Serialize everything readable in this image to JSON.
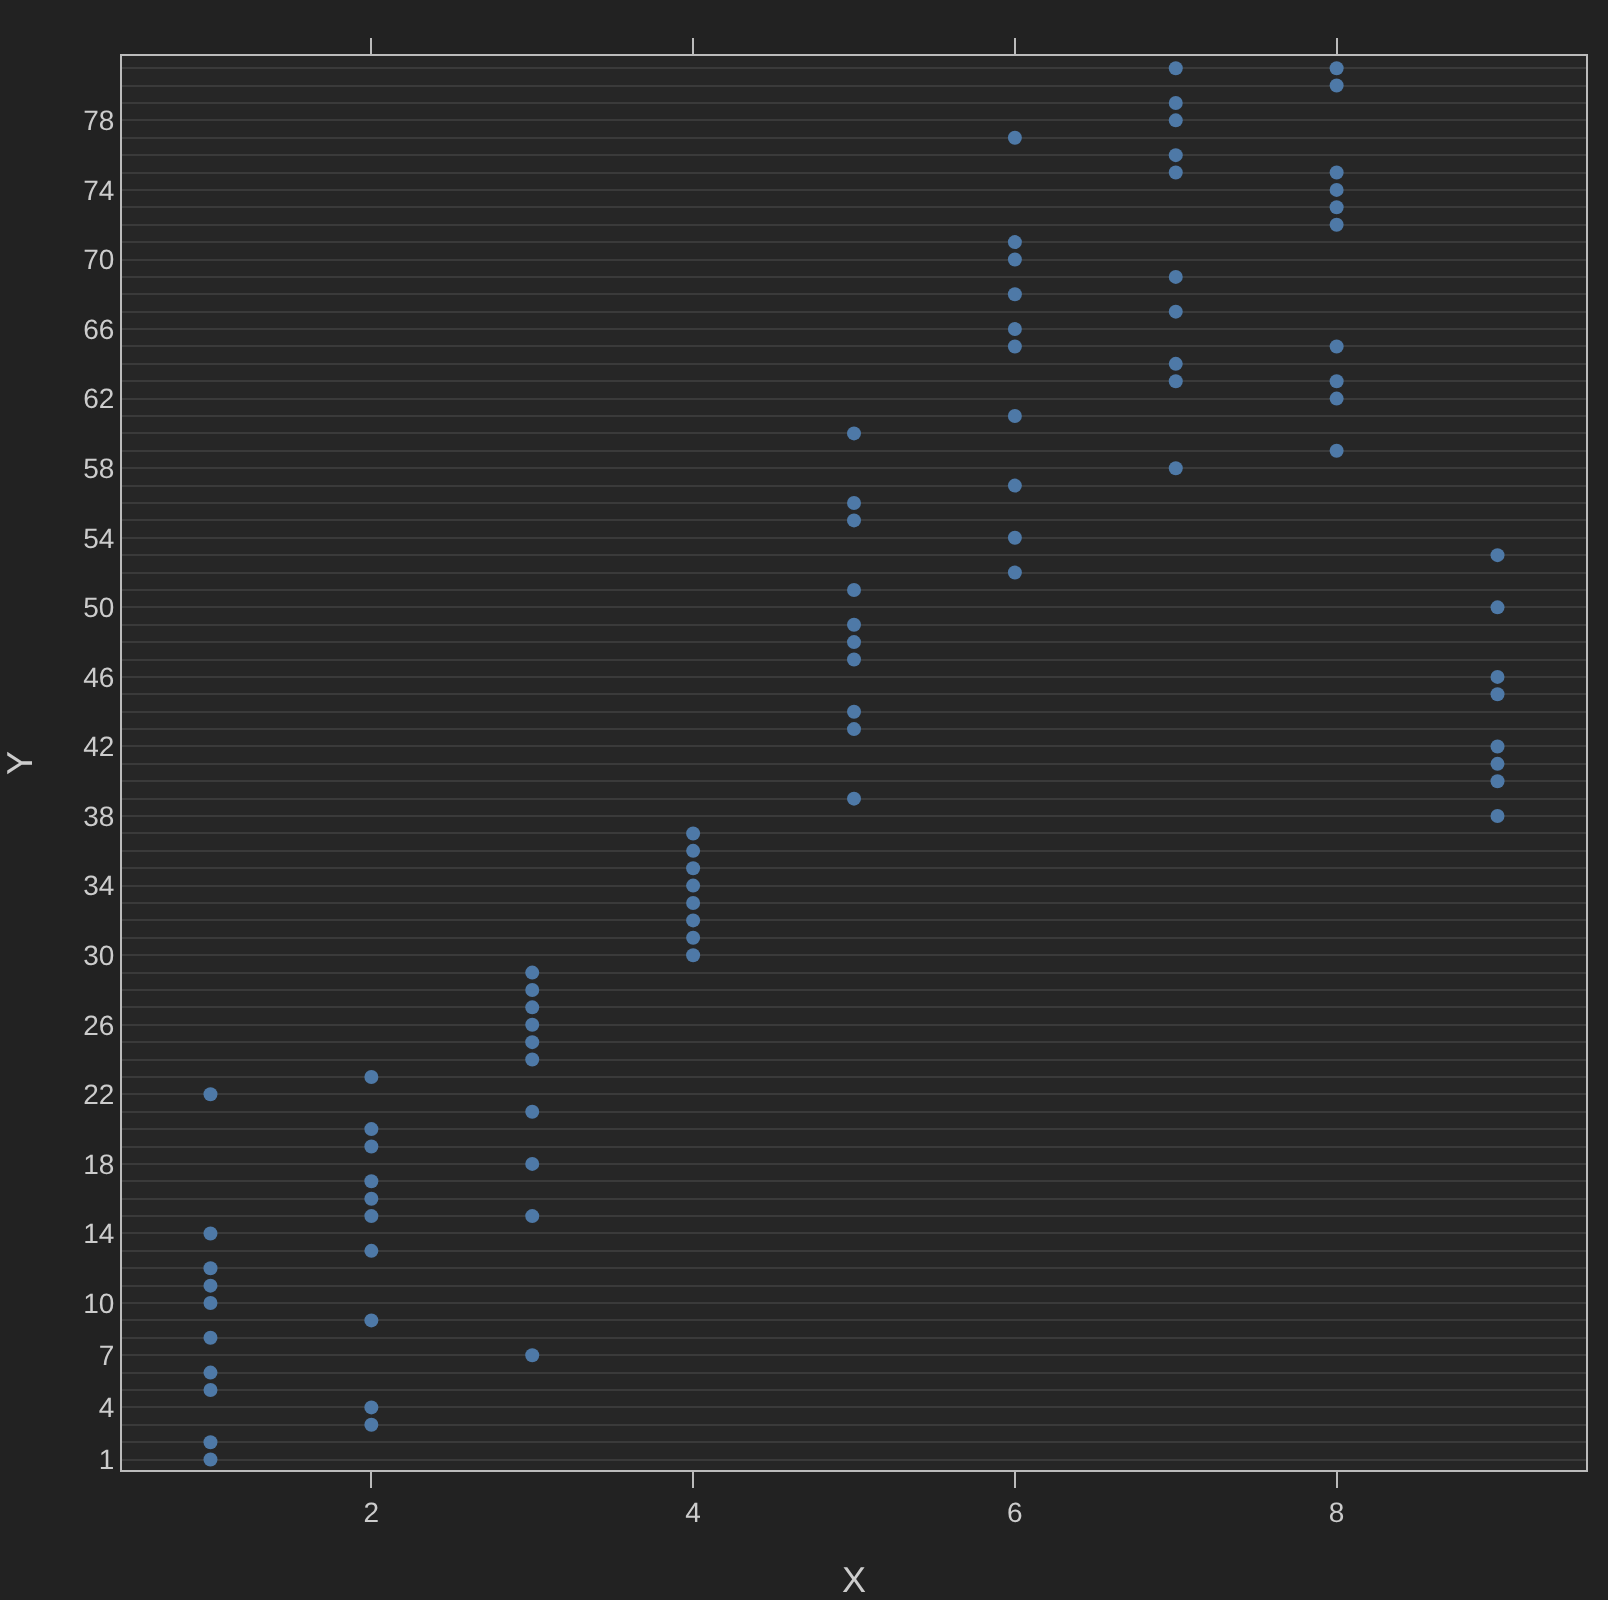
{
  "chart_data": {
    "type": "scatter",
    "xlabel": "X",
    "ylabel": "Y",
    "color": "#4e79a7",
    "marker": "circle",
    "grid": "y",
    "x": [
      1,
      1,
      1,
      1,
      1,
      1,
      1,
      1,
      1,
      1,
      2,
      2,
      2,
      2,
      2,
      2,
      2,
      2,
      2,
      2,
      3,
      3,
      3,
      3,
      3,
      3,
      3,
      3,
      3,
      3,
      4,
      4,
      4,
      4,
      4,
      4,
      4,
      4,
      5,
      5,
      5,
      5,
      5,
      5,
      5,
      5,
      5,
      5,
      6,
      6,
      6,
      6,
      6,
      6,
      6,
      6,
      6,
      6,
      7,
      7,
      7,
      7,
      7,
      7,
      7,
      7,
      7,
      7,
      8,
      8,
      8,
      8,
      8,
      8,
      8,
      8,
      8,
      8,
      9,
      9,
      9,
      9,
      9,
      9,
      9,
      9
    ],
    "values": [
      22,
      14,
      12,
      11,
      10,
      8,
      6,
      5,
      2,
      1,
      23,
      20,
      19,
      17,
      16,
      15,
      13,
      9,
      4,
      3,
      29,
      28,
      27,
      26,
      25,
      24,
      21,
      18,
      15,
      7,
      37,
      36,
      35,
      34,
      33,
      32,
      31,
      30,
      60,
      56,
      55,
      51,
      49,
      48,
      47,
      44,
      43,
      39,
      77,
      71,
      70,
      68,
      66,
      65,
      61,
      57,
      54,
      52,
      81,
      79,
      78,
      76,
      75,
      69,
      67,
      64,
      63,
      58,
      81,
      80,
      75,
      74,
      73,
      72,
      65,
      63,
      62,
      59,
      53,
      50,
      46,
      45,
      42,
      41,
      40,
      38
    ],
    "xlim": [
      0.45,
      9.55
    ],
    "xticks": [
      2,
      4,
      6,
      8
    ],
    "ylim": [
      0.4,
      81.7
    ],
    "yticks": [
      1,
      {
        "value": 2,
        "label": null
      },
      {
        "value": 3,
        "label": null
      },
      4,
      {
        "value": 5,
        "label": null
      },
      {
        "value": 6,
        "label": null
      },
      7,
      {
        "value": 8,
        "label": null
      },
      {
        "value": 9,
        "label": null
      },
      10,
      {
        "value": 11,
        "label": null
      },
      {
        "value": 12,
        "label": null
      },
      {
        "value": 13,
        "label": null
      },
      14,
      {
        "value": 15,
        "label": null
      },
      {
        "value": 16,
        "label": null
      },
      {
        "value": 17,
        "label": null
      },
      18,
      {
        "value": 19,
        "label": null
      },
      {
        "value": 20,
        "label": null
      },
      {
        "value": 21,
        "label": null
      },
      22,
      {
        "value": 23,
        "label": null
      },
      {
        "value": 24,
        "label": null
      },
      {
        "value": 25,
        "label": null
      },
      26,
      {
        "value": 27,
        "label": null
      },
      {
        "value": 28,
        "label": null
      },
      {
        "value": 29,
        "label": null
      },
      30,
      {
        "value": 31,
        "label": null
      },
      {
        "value": 32,
        "label": null
      },
      {
        "value": 33,
        "label": null
      },
      34,
      {
        "value": 35,
        "label": null
      },
      {
        "value": 36,
        "label": null
      },
      {
        "value": 37,
        "label": null
      },
      38,
      {
        "value": 39,
        "label": null
      },
      {
        "value": 40,
        "label": null
      },
      {
        "value": 41,
        "label": null
      },
      42,
      {
        "value": 43,
        "label": null
      },
      {
        "value": 44,
        "label": null
      },
      {
        "value": 45,
        "label": null
      },
      46,
      {
        "value": 47,
        "label": null
      },
      {
        "value": 48,
        "label": null
      },
      {
        "value": 49,
        "label": null
      },
      50,
      {
        "value": 51,
        "label": null
      },
      {
        "value": 52,
        "label": null
      },
      {
        "value": 53,
        "label": null
      },
      54,
      {
        "value": 55,
        "label": null
      },
      {
        "value": 56,
        "label": null
      },
      {
        "value": 57,
        "label": null
      },
      58,
      {
        "value": 59,
        "label": null
      },
      {
        "value": 60,
        "label": null
      },
      {
        "value": 61,
        "label": null
      },
      62,
      {
        "value": 63,
        "label": null
      },
      {
        "value": 64,
        "label": null
      },
      {
        "value": 65,
        "label": null
      },
      66,
      {
        "value": 67,
        "label": null
      },
      {
        "value": 68,
        "label": null
      },
      {
        "value": 69,
        "label": null
      },
      70,
      {
        "value": 71,
        "label": null
      },
      {
        "value": 72,
        "label": null
      },
      {
        "value": 73,
        "label": null
      },
      74,
      {
        "value": 75,
        "label": null
      },
      {
        "value": 76,
        "label": null
      },
      {
        "value": 77,
        "label": null
      },
      78,
      {
        "value": 79,
        "label": null
      },
      {
        "value": 80,
        "label": null
      },
      {
        "value": 81,
        "label": null
      }
    ]
  }
}
